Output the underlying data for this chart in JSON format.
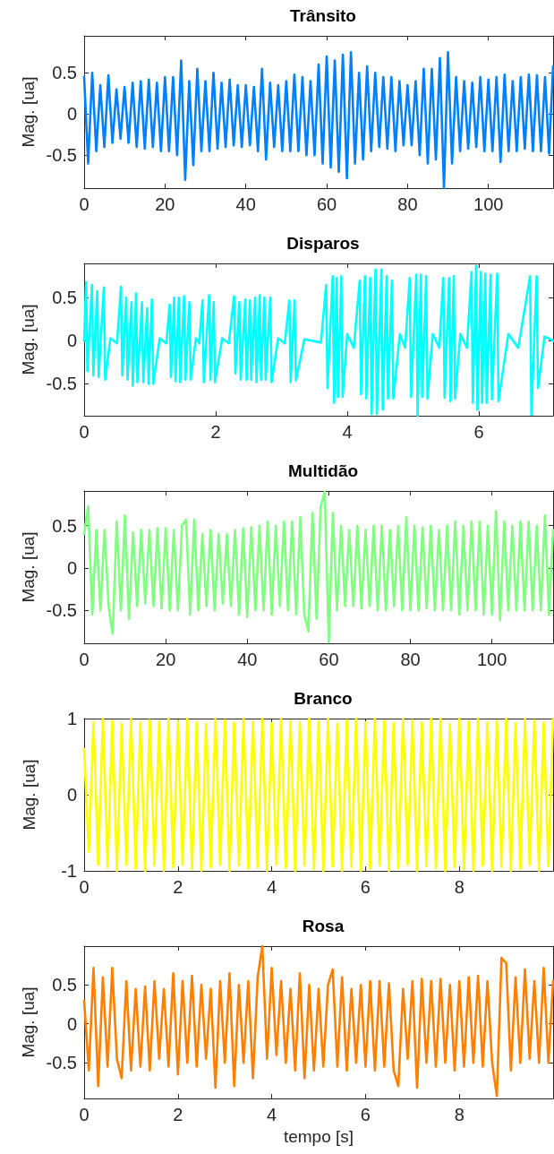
{
  "chart_data": [
    {
      "type": "line",
      "title": "Trânsito",
      "ylabel": "Mag. [ua]",
      "color": "#0080ff",
      "marker": "none",
      "grid": false,
      "xlim": [
        0,
        116
      ],
      "xticks": [
        0,
        20,
        40,
        60,
        80,
        100
      ],
      "ylim": [
        -0.9,
        0.95
      ],
      "yticks": [
        -0.5,
        0,
        0.5
      ],
      "x": [
        0,
        1,
        2,
        3,
        4,
        5,
        6,
        7,
        8,
        9,
        10,
        11,
        12,
        13,
        14,
        15,
        16,
        17,
        18,
        19,
        20,
        21,
        22,
        23,
        24,
        25,
        26,
        27,
        28,
        29,
        30,
        31,
        32,
        33,
        34,
        35,
        36,
        37,
        38,
        39,
        40,
        41,
        42,
        43,
        44,
        45,
        46,
        47,
        48,
        49,
        50,
        51,
        52,
        53,
        54,
        55,
        56,
        57,
        58,
        59,
        60,
        61,
        62,
        63,
        64,
        65,
        66,
        67,
        68,
        69,
        70,
        71,
        72,
        73,
        74,
        75,
        76,
        77,
        78,
        79,
        80,
        81,
        82,
        83,
        84,
        85,
        86,
        87,
        88,
        89,
        90,
        91,
        92,
        93,
        94,
        95,
        96,
        97,
        98,
        99,
        100,
        101,
        102,
        103,
        104,
        105,
        106,
        107,
        108,
        109,
        110,
        111,
        112,
        113,
        114,
        115,
        116
      ],
      "values": [
        0.45,
        -0.6,
        0.5,
        -0.45,
        0.35,
        -0.4,
        0.47,
        -0.35,
        0.3,
        -0.3,
        0.33,
        -0.35,
        0.38,
        -0.4,
        0.4,
        -0.42,
        0.42,
        -0.4,
        0.38,
        -0.45,
        0.45,
        -0.45,
        0.45,
        -0.5,
        0.65,
        -0.8,
        0.4,
        -0.62,
        0.55,
        -0.45,
        0.4,
        -0.45,
        0.5,
        -0.42,
        0.38,
        -0.4,
        0.42,
        -0.38,
        0.35,
        -0.4,
        0.35,
        -0.38,
        0.33,
        -0.45,
        0.55,
        -0.55,
        0.38,
        -0.4,
        0.35,
        -0.45,
        0.4,
        -0.45,
        0.48,
        -0.45,
        0.45,
        -0.5,
        0.4,
        -0.5,
        0.6,
        -0.6,
        0.7,
        -0.65,
        0.65,
        -0.7,
        0.72,
        -0.78,
        0.75,
        -0.6,
        0.5,
        -0.55,
        0.58,
        -0.45,
        0.5,
        -0.4,
        0.45,
        -0.42,
        0.45,
        -0.45,
        0.4,
        -0.38,
        0.35,
        -0.38,
        0.4,
        -0.5,
        0.55,
        -0.6,
        0.55,
        -0.55,
        0.68,
        -0.9,
        0.75,
        -0.6,
        0.45,
        -0.45,
        0.4,
        -0.42,
        0.38,
        -0.4,
        0.45,
        -0.45,
        0.42,
        -0.45,
        0.45,
        -0.58,
        0.48,
        -0.45,
        0.4,
        -0.45,
        0.45,
        -0.42,
        0.48,
        -0.45,
        0.47,
        -0.45,
        0.45,
        -0.48,
        0.58
      ]
    },
    {
      "type": "line",
      "title": "Disparos",
      "ylabel": "Mag. [ua]",
      "color": "#00ffff",
      "marker": "none",
      "grid": false,
      "xlim": [
        0,
        7.13
      ],
      "xticks": [
        0,
        2,
        4,
        6
      ],
      "ylim": [
        -0.87,
        0.9
      ],
      "yticks": [
        -0.5,
        0,
        0.5
      ],
      "x": [
        0,
        0.03,
        0.05,
        0.12,
        0.14,
        0.2,
        0.22,
        0.3,
        0.32,
        0.4,
        0.5,
        0.56,
        0.58,
        0.64,
        0.66,
        0.72,
        0.74,
        0.79,
        0.81,
        0.88,
        0.9,
        0.96,
        0.98,
        1.03,
        1.05,
        1.15,
        1.25,
        1.3,
        1.32,
        1.37,
        1.39,
        1.44,
        1.46,
        1.52,
        1.54,
        1.6,
        1.62,
        1.7,
        1.75,
        1.8,
        1.82,
        1.9,
        1.92,
        1.97,
        1.99,
        2.1,
        2.2,
        2.28,
        2.3,
        2.36,
        2.38,
        2.45,
        2.47,
        2.52,
        2.54,
        2.6,
        2.62,
        2.67,
        2.69,
        2.74,
        2.76,
        2.83,
        2.85,
        2.95,
        3.05,
        3.12,
        3.14,
        3.2,
        3.22,
        3.35,
        3.6,
        3.68,
        3.7,
        3.78,
        3.8,
        3.84,
        3.86,
        3.91,
        3.93,
        4.0,
        4.1,
        4.19,
        4.21,
        4.27,
        4.29,
        4.35,
        4.37,
        4.43,
        4.45,
        4.52,
        4.54,
        4.6,
        4.62,
        4.68,
        4.7,
        4.8,
        4.88,
        4.95,
        4.97,
        5.05,
        5.07,
        5.12,
        5.14,
        5.2,
        5.22,
        5.3,
        5.4,
        5.46,
        5.48,
        5.55,
        5.57,
        5.62,
        5.64,
        5.72,
        5.82,
        5.89,
        5.91,
        5.96,
        5.98,
        6.03,
        6.05,
        6.1,
        6.12,
        6.18,
        6.2,
        6.28,
        6.3,
        6.45,
        6.6,
        6.78,
        6.8,
        6.88,
        6.9,
        7.0,
        7.13
      ],
      "values": [
        0,
        0.68,
        -0.35,
        0.65,
        -0.4,
        0.58,
        -0.42,
        0.62,
        -0.45,
        0.03,
        -0.03,
        0.63,
        -0.4,
        0.5,
        -0.45,
        0.45,
        -0.52,
        0.55,
        -0.48,
        0.45,
        -0.48,
        0.38,
        -0.5,
        0.48,
        -0.5,
        0.03,
        -0.03,
        0.42,
        -0.42,
        0.5,
        -0.47,
        0.5,
        -0.48,
        0.52,
        -0.45,
        0.45,
        -0.45,
        0.03,
        -0.03,
        0.47,
        -0.48,
        0.53,
        -0.45,
        0.45,
        -0.48,
        0.03,
        -0.03,
        0.52,
        -0.38,
        0.45,
        -0.45,
        0.48,
        -0.45,
        0.47,
        -0.45,
        0.5,
        -0.48,
        0.53,
        -0.45,
        0.5,
        -0.45,
        0.5,
        -0.48,
        0.03,
        -0.03,
        0.47,
        -0.48,
        0.47,
        -0.46,
        0.02,
        -0.02,
        0.65,
        -0.55,
        0.75,
        -0.72,
        0.73,
        -0.65,
        0.75,
        -0.65,
        0.08,
        -0.08,
        0.7,
        -0.62,
        0.75,
        -0.67,
        0.73,
        -0.85,
        0.83,
        -0.85,
        0.83,
        -0.8,
        0.75,
        -0.67,
        0.7,
        -0.67,
        0.08,
        -0.08,
        0.73,
        -0.65,
        0.77,
        -0.87,
        0.77,
        -0.65,
        0.75,
        -0.67,
        0.08,
        -0.08,
        0.73,
        -0.66,
        0.73,
        -0.7,
        0.75,
        -0.67,
        0.08,
        -0.08,
        0.8,
        -0.72,
        0.87,
        -0.8,
        0.8,
        -0.72,
        0.78,
        -0.72,
        0.77,
        -0.68,
        0.78,
        -0.7,
        0.08,
        -0.08,
        0.75,
        -0.86,
        0.75,
        -0.55,
        0.05,
        0
      ]
    },
    {
      "type": "line",
      "title": "Multidão",
      "ylabel": "Mag. [ua]",
      "color": "#80ff80",
      "marker": "none",
      "grid": false,
      "xlim": [
        0,
        115
      ],
      "xticks": [
        0,
        20,
        40,
        60,
        80,
        100
      ],
      "ylim": [
        -0.89,
        0.91
      ],
      "yticks": [
        -0.5,
        0,
        0.5
      ],
      "x": [
        0,
        1,
        2,
        3,
        4,
        5,
        6,
        7,
        8,
        9,
        10,
        11,
        12,
        13,
        14,
        15,
        16,
        17,
        18,
        19,
        20,
        21,
        22,
        23,
        24,
        25,
        26,
        27,
        28,
        29,
        30,
        31,
        32,
        33,
        34,
        35,
        36,
        37,
        38,
        39,
        40,
        41,
        42,
        43,
        44,
        45,
        46,
        47,
        48,
        49,
        50,
        51,
        52,
        53,
        54,
        55,
        56,
        57,
        58,
        59,
        60,
        61,
        62,
        63,
        64,
        65,
        66,
        67,
        68,
        69,
        70,
        71,
        72,
        73,
        74,
        75,
        76,
        77,
        78,
        79,
        80,
        81,
        82,
        83,
        84,
        85,
        86,
        87,
        88,
        89,
        90,
        91,
        92,
        93,
        94,
        95,
        96,
        97,
        98,
        99,
        100,
        101,
        102,
        103,
        104,
        105,
        106,
        107,
        108,
        109,
        110,
        111,
        112,
        113,
        114,
        115
      ],
      "values": [
        0.4,
        0.73,
        -0.55,
        0.45,
        -0.5,
        0.45,
        -0.45,
        -0.78,
        0.55,
        -0.5,
        0.62,
        -0.6,
        0.42,
        -0.45,
        0.45,
        -0.42,
        0.45,
        -0.45,
        0.47,
        -0.48,
        0.47,
        -0.5,
        0.45,
        -0.5,
        0.5,
        0.57,
        -0.55,
        0.57,
        -0.5,
        0.4,
        -0.45,
        0.45,
        -0.5,
        0.4,
        -0.42,
        0.4,
        -0.45,
        0.45,
        -0.55,
        0.47,
        -0.58,
        0.48,
        -0.5,
        0.5,
        -0.5,
        0.55,
        -0.55,
        0.5,
        -0.45,
        0.55,
        -0.5,
        0.55,
        -0.55,
        0.6,
        -0.55,
        -0.75,
        0.65,
        -0.6,
        0.72,
        0.9,
        -0.88,
        0.65,
        -0.5,
        0.5,
        -0.45,
        0.45,
        -0.45,
        0.5,
        -0.48,
        0.45,
        -0.45,
        0.5,
        -0.5,
        0.5,
        -0.5,
        0.45,
        -0.45,
        0.5,
        -0.5,
        0.6,
        -0.5,
        0.5,
        -0.5,
        0.48,
        -0.48,
        0.5,
        -0.5,
        0.45,
        -0.5,
        0.5,
        -0.5,
        0.55,
        -0.55,
        0.5,
        -0.5,
        0.55,
        -0.5,
        0.55,
        -0.55,
        0.5,
        -0.55,
        0.67,
        -0.62,
        0.55,
        -0.5,
        0.5,
        -0.5,
        0.55,
        -0.5,
        0.55,
        -0.5,
        0.5,
        -0.5,
        0.62,
        -0.55,
        0.45
      ]
    },
    {
      "type": "line",
      "title": "Branco",
      "ylabel": "Mag. [ua]",
      "color": "#ffff00",
      "marker": "none",
      "grid": false,
      "xlim": [
        0,
        10
      ],
      "xticks": [
        0,
        2,
        4,
        6,
        8
      ],
      "ylim": [
        -1,
        1
      ],
      "yticks": [
        -1,
        0,
        1
      ],
      "x": [
        0,
        0.1,
        0.2,
        0.3,
        0.4,
        0.5,
        0.6,
        0.7,
        0.8,
        0.9,
        1,
        1.1,
        1.2,
        1.3,
        1.4,
        1.5,
        1.6,
        1.7,
        1.8,
        1.9,
        2,
        2.1,
        2.2,
        2.3,
        2.4,
        2.5,
        2.6,
        2.7,
        2.8,
        2.9,
        3,
        3.1,
        3.2,
        3.3,
        3.4,
        3.5,
        3.6,
        3.7,
        3.8,
        3.9,
        4,
        4.1,
        4.2,
        4.3,
        4.4,
        4.5,
        4.6,
        4.7,
        4.8,
        4.9,
        5,
        5.1,
        5.2,
        5.3,
        5.4,
        5.5,
        5.6,
        5.7,
        5.8,
        5.9,
        6,
        6.1,
        6.2,
        6.3,
        6.4,
        6.5,
        6.6,
        6.7,
        6.8,
        6.9,
        7,
        7.1,
        7.2,
        7.3,
        7.4,
        7.5,
        7.6,
        7.7,
        7.8,
        7.9,
        8,
        8.1,
        8.2,
        8.3,
        8.4,
        8.5,
        8.6,
        8.7,
        8.8,
        8.9,
        9,
        9.1,
        9.2,
        9.3,
        9.4,
        9.5,
        9.6,
        9.7,
        9.8,
        9.9,
        10
      ],
      "values": [
        0.6,
        -0.75,
        0.95,
        -0.92,
        1,
        -0.95,
        0.97,
        -1,
        0.93,
        -0.92,
        1,
        -0.97,
        0.95,
        -1,
        0.98,
        -0.93,
        0.96,
        -1,
        1,
        -0.95,
        0.97,
        -0.92,
        1,
        -0.98,
        0.95,
        -1,
        0.93,
        -0.95,
        1,
        -0.92,
        0.98,
        -1,
        0.95,
        -0.93,
        1,
        -0.97,
        0.96,
        -0.95,
        1,
        -1,
        0.94,
        -0.92,
        1,
        -0.96,
        0.97,
        -1,
        0.95,
        -0.93,
        1,
        -0.98,
        0.96,
        -1,
        1,
        -0.94,
        0.93,
        -1,
        0.98,
        -0.95,
        1,
        -1,
        0.95,
        -0.97,
        1,
        -0.93,
        0.97,
        -1,
        0.94,
        -0.96,
        1,
        -0.92,
        0.98,
        -1,
        0.95,
        -0.94,
        1,
        -0.97,
        1,
        -1,
        0.93,
        -0.95,
        1,
        -0.98,
        0.96,
        -1,
        1,
        -0.93,
        0.95,
        -1,
        0.97,
        -0.95,
        1,
        -1,
        0.94,
        -0.97,
        1,
        -0.92,
        0.98,
        -1,
        0.95,
        -0.94,
        1
      ]
    },
    {
      "type": "line",
      "title": "Rosa",
      "ylabel": "Mag. [ua]",
      "xlabel": "tempo [s]",
      "color": "#ff8000",
      "marker": "none",
      "grid": false,
      "xlim": [
        0,
        10
      ],
      "xticks": [
        0,
        2,
        4,
        6,
        8
      ],
      "ylim": [
        -0.96,
        1.0
      ],
      "yticks": [
        -0.5,
        0,
        0.5
      ],
      "x": [
        0,
        0.1,
        0.2,
        0.3,
        0.4,
        0.5,
        0.6,
        0.7,
        0.8,
        0.9,
        1,
        1.1,
        1.2,
        1.3,
        1.4,
        1.5,
        1.6,
        1.7,
        1.8,
        1.9,
        2,
        2.1,
        2.2,
        2.3,
        2.4,
        2.5,
        2.6,
        2.7,
        2.8,
        2.9,
        3,
        3.1,
        3.2,
        3.3,
        3.4,
        3.5,
        3.6,
        3.7,
        3.8,
        3.9,
        4,
        4.1,
        4.2,
        4.3,
        4.4,
        4.5,
        4.6,
        4.7,
        4.8,
        4.9,
        5,
        5.1,
        5.2,
        5.3,
        5.4,
        5.5,
        5.6,
        5.7,
        5.8,
        5.9,
        6,
        6.1,
        6.2,
        6.3,
        6.4,
        6.5,
        6.6,
        6.7,
        6.8,
        6.9,
        7,
        7.1,
        7.2,
        7.3,
        7.4,
        7.5,
        7.6,
        7.7,
        7.8,
        7.9,
        8,
        8.1,
        8.2,
        8.3,
        8.4,
        8.5,
        8.6,
        8.7,
        8.8,
        8.9,
        9,
        9.1,
        9.2,
        9.3,
        9.4,
        9.5,
        9.6,
        9.7,
        9.8,
        9.9,
        10
      ],
      "values": [
        0.3,
        -0.6,
        0.72,
        -0.8,
        0.6,
        -0.55,
        0.72,
        -0.45,
        -0.7,
        0.55,
        -0.6,
        0.45,
        -0.55,
        0.48,
        -0.6,
        0.55,
        -0.45,
        0.45,
        -0.55,
        0.65,
        -0.65,
        0.55,
        -0.5,
        0.62,
        -0.55,
        0.5,
        -0.45,
        0.45,
        -0.82,
        0.55,
        -0.5,
        0.65,
        -0.8,
        0.5,
        -0.5,
        0.55,
        -0.7,
        0.6,
        1.0,
        -0.45,
        0.72,
        -0.4,
        0.55,
        -0.5,
        0.45,
        -0.6,
        0.65,
        -0.7,
        0.5,
        -0.6,
        0.45,
        -0.55,
        0.5,
        0.7,
        -0.55,
        0.6,
        -0.6,
        0.45,
        -0.5,
        0.5,
        -0.55,
        0.55,
        -0.6,
        0.55,
        -0.55,
        0.52,
        -0.6,
        -0.8,
        0.45,
        -0.45,
        0.55,
        -0.82,
        0.58,
        -0.5,
        0.55,
        -0.55,
        0.58,
        -0.5,
        0.5,
        -0.6,
        0.55,
        -0.55,
        0.6,
        -0.5,
        0.62,
        -0.55,
        0.55,
        -0.5,
        -0.93,
        0.85,
        0.78,
        -0.6,
        0.6,
        -0.5,
        0.7,
        -0.45,
        0.55,
        -0.5,
        0.72,
        -0.5,
        0.55
      ]
    }
  ]
}
